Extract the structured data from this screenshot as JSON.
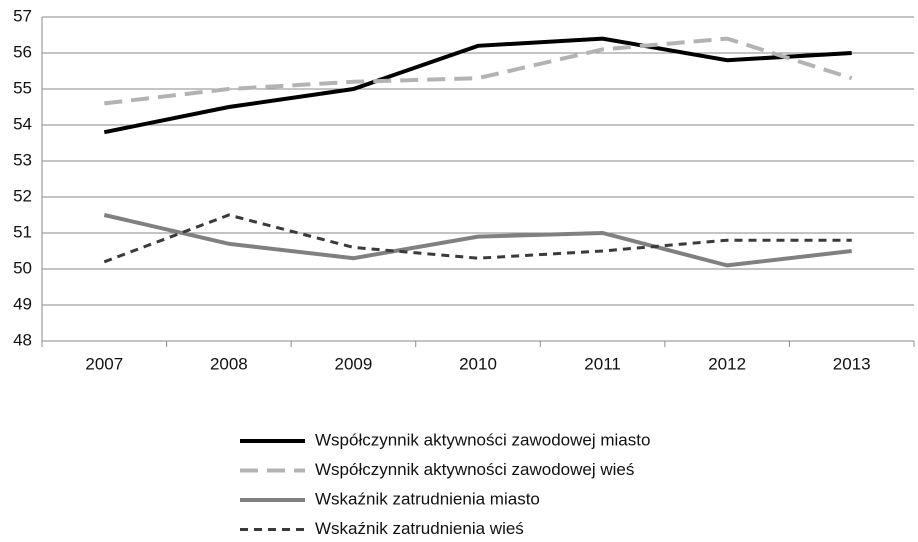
{
  "chart_data": {
    "type": "line",
    "categories": [
      "2007",
      "2008",
      "2009",
      "2010",
      "2011",
      "2012",
      "2013"
    ],
    "series": [
      {
        "name": "Współczynnik aktywności zawodowej miasto",
        "color": "#000000",
        "dash": false,
        "values": [
          53.8,
          54.5,
          55.0,
          56.2,
          56.4,
          55.8,
          56.0
        ]
      },
      {
        "name": "Współczynnik aktywności zawodowej wieś",
        "color": "#b3b3b3",
        "dash": true,
        "values": [
          54.6,
          55.0,
          55.2,
          55.3,
          56.1,
          56.4,
          55.3
        ]
      },
      {
        "name": "Wskaźnik zatrudnienia miasto",
        "color": "#808080",
        "dash": false,
        "values": [
          51.5,
          50.7,
          50.3,
          50.9,
          51.0,
          50.1,
          50.5
        ]
      },
      {
        "name": "Wskaźnik zatrudnienia wieś",
        "color": "#3a3a3a",
        "dash": true,
        "values": [
          50.2,
          51.5,
          50.6,
          50.3,
          50.5,
          50.8,
          50.8
        ]
      }
    ],
    "ylim": [
      48,
      57
    ],
    "yticks": [
      48,
      49,
      50,
      51,
      52,
      53,
      54,
      55,
      56,
      57
    ],
    "grid": true,
    "legend": "bottom"
  }
}
